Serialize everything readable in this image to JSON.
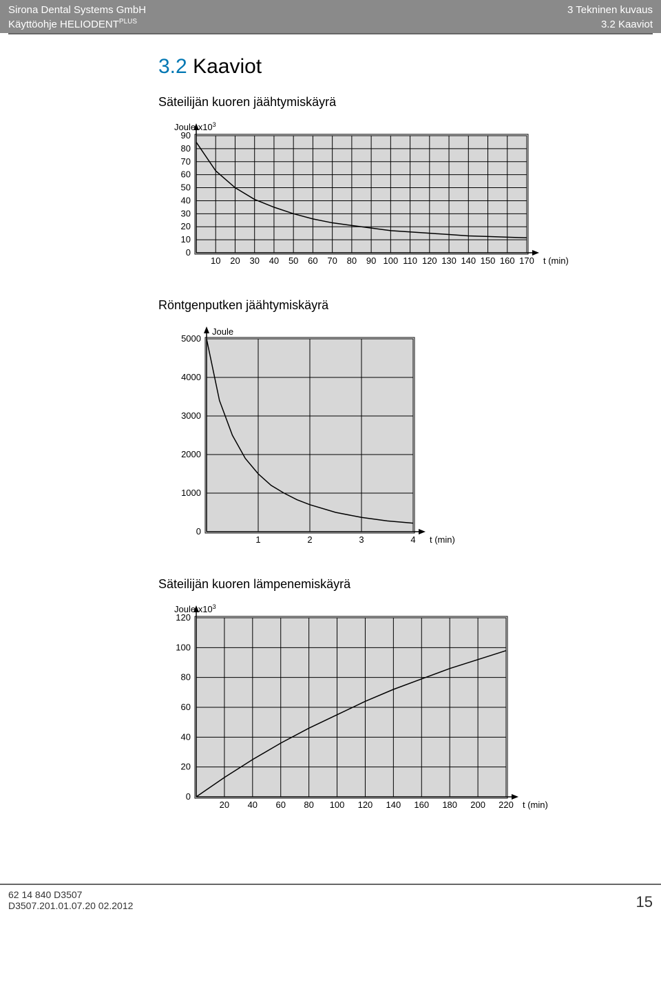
{
  "header": {
    "left_line1": "Sirona Dental Systems GmbH",
    "left_line2_a": "Käyttöohje HELIODENT",
    "left_line2_sup": "PLUS",
    "right_line1": "3 Tekninen kuvaus",
    "right_line2": "3.2 Kaaviot"
  },
  "section": {
    "number": "3.2",
    "title": "Kaaviot"
  },
  "chart1": {
    "type": "line",
    "title": "Säteilijän kuoren jäähtymiskäyrä",
    "y_label_a": "Joule x10",
    "y_label_sup": "3",
    "x_unit": "t (min)",
    "y_ticks": [
      0,
      10,
      20,
      30,
      40,
      50,
      60,
      70,
      80,
      90
    ],
    "x_ticks": [
      10,
      20,
      30,
      40,
      50,
      60,
      70,
      80,
      90,
      100,
      110,
      120,
      130,
      140,
      150,
      160,
      170
    ],
    "ylim": [
      0,
      90
    ],
    "xlim": [
      0,
      170
    ],
    "curve": [
      [
        0,
        85
      ],
      [
        10,
        63
      ],
      [
        20,
        50
      ],
      [
        30,
        41
      ],
      [
        40,
        35
      ],
      [
        50,
        30
      ],
      [
        60,
        26
      ],
      [
        70,
        23
      ],
      [
        80,
        21
      ],
      [
        90,
        19
      ],
      [
        100,
        17
      ],
      [
        110,
        16
      ],
      [
        120,
        15
      ],
      [
        130,
        14
      ],
      [
        140,
        13
      ],
      [
        150,
        12.5
      ],
      [
        160,
        12
      ],
      [
        170,
        11.5
      ]
    ],
    "colors": {
      "plot_bg": "#d7d7d7",
      "grid": "#000000",
      "curve": "#000000",
      "text": "#000000",
      "border": "#000000"
    },
    "line_width": 1,
    "curve_width": 1.5,
    "font_size": 13
  },
  "chart2": {
    "type": "line",
    "title": "Röntgenputken jäähtymiskäyrä",
    "y_label": "Joule",
    "x_unit": "t (min)",
    "y_ticks": [
      0,
      1000,
      2000,
      3000,
      4000,
      5000
    ],
    "x_ticks": [
      1,
      2,
      3,
      4
    ],
    "ylim": [
      0,
      5000
    ],
    "xlim": [
      0,
      4
    ],
    "curve": [
      [
        0,
        5000
      ],
      [
        0.25,
        3400
      ],
      [
        0.5,
        2500
      ],
      [
        0.75,
        1900
      ],
      [
        1,
        1500
      ],
      [
        1.25,
        1200
      ],
      [
        1.5,
        1000
      ],
      [
        1.75,
        830
      ],
      [
        2,
        700
      ],
      [
        2.5,
        500
      ],
      [
        3,
        370
      ],
      [
        3.5,
        280
      ],
      [
        4,
        220
      ]
    ],
    "colors": {
      "plot_bg": "#d7d7d7",
      "grid": "#000000",
      "curve": "#000000",
      "text": "#000000",
      "border": "#000000"
    },
    "line_width": 1,
    "curve_width": 1.5,
    "font_size": 13
  },
  "chart3": {
    "type": "line",
    "title": "Säteilijän kuoren lämpenemiskäyrä",
    "y_label_a": "Joule x10",
    "y_label_sup": "3",
    "x_unit": "t (min)",
    "y_ticks": [
      0,
      20,
      40,
      60,
      80,
      100,
      120
    ],
    "x_ticks": [
      20,
      40,
      60,
      80,
      100,
      120,
      140,
      160,
      180,
      200,
      220
    ],
    "ylim": [
      0,
      120
    ],
    "xlim": [
      0,
      220
    ],
    "curve": [
      [
        0,
        0
      ],
      [
        20,
        13
      ],
      [
        40,
        25
      ],
      [
        60,
        36
      ],
      [
        80,
        46
      ],
      [
        100,
        55
      ],
      [
        120,
        64
      ],
      [
        140,
        72
      ],
      [
        160,
        79
      ],
      [
        180,
        86
      ],
      [
        200,
        92
      ],
      [
        220,
        98
      ]
    ],
    "colors": {
      "plot_bg": "#d7d7d7",
      "grid": "#000000",
      "curve": "#000000",
      "text": "#000000",
      "border": "#000000"
    },
    "line_width": 1,
    "curve_width": 1.5,
    "font_size": 13
  },
  "footer": {
    "left_line1": "62 14 840 D3507",
    "left_line2": "D3507.201.01.07.20   02.2012",
    "page": "15"
  }
}
